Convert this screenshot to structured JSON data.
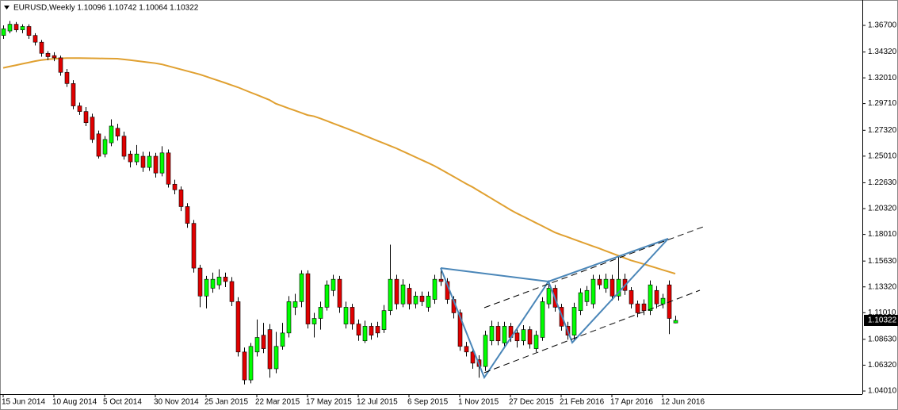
{
  "chart_data": {
    "type": "candlestick",
    "title": "EURUSD,Weekly  1.10096 1.10742 1.10064 1.10322",
    "categories": [
      "15 Jun 2014",
      null,
      null,
      null,
      null,
      null,
      null,
      null,
      "10 Aug 2014",
      null,
      null,
      null,
      null,
      null,
      null,
      null,
      "5 Oct 2014",
      null,
      null,
      null,
      null,
      null,
      null,
      null,
      "30 Nov 2014",
      null,
      null,
      null,
      null,
      null,
      null,
      null,
      "25 Jan 2015",
      null,
      null,
      null,
      null,
      null,
      null,
      null,
      "22 Mar 2015",
      null,
      null,
      null,
      null,
      null,
      null,
      null,
      "17 May 2015",
      null,
      null,
      null,
      null,
      null,
      null,
      null,
      "12 Jul 2015",
      null,
      null,
      null,
      null,
      null,
      null,
      null,
      "6 Sep 2015",
      null,
      null,
      null,
      null,
      null,
      null,
      null,
      "1 Nov 2015",
      null,
      null,
      null,
      null,
      null,
      null,
      null,
      "27 Dec 2015",
      null,
      null,
      null,
      null,
      null,
      null,
      null,
      "21 Feb 2016",
      null,
      null,
      null,
      null,
      null,
      null,
      null,
      "17 Apr 2016",
      null,
      null,
      null,
      null,
      null,
      null,
      null,
      "12 Jun 2016",
      null,
      null
    ],
    "open": [
      1.358,
      1.362,
      1.368,
      1.363,
      1.366,
      1.358,
      1.352,
      1.342,
      1.34,
      1.338,
      1.325,
      1.315,
      1.295,
      1.29,
      1.285,
      1.27,
      1.252,
      1.262,
      1.275,
      1.268,
      1.252,
      1.245,
      1.25,
      1.24,
      1.25,
      1.235,
      1.253,
      1.225,
      1.22,
      1.205,
      1.19,
      1.15,
      1.125,
      1.132,
      1.135,
      1.142,
      1.138,
      1.12,
      1.075,
      1.05,
      1.075,
      1.09,
      1.095,
      1.06,
      1.08,
      1.092,
      1.115,
      1.12,
      1.145,
      1.1,
      1.105,
      1.115,
      1.13,
      1.14,
      1.1,
      1.115,
      1.1,
      1.085,
      1.098,
      1.098,
      1.095,
      1.112,
      1.14,
      1.118,
      1.132,
      1.118,
      1.125,
      1.115,
      1.122,
      1.14,
      1.138,
      1.122,
      1.11,
      1.08,
      1.075,
      1.068,
      1.062,
      1.085,
      1.098,
      1.083,
      1.098,
      1.092,
      1.085,
      1.095,
      1.078,
      1.088,
      1.118,
      1.132,
      1.115,
      1.098,
      1.09,
      1.112,
      1.12,
      1.118,
      1.14,
      1.132,
      1.14,
      1.125,
      1.14,
      1.13,
      1.118,
      1.118,
      1.112,
      1.13,
      1.118,
      1.135,
      1.10096
    ],
    "high": [
      1.367,
      1.371,
      1.37,
      1.368,
      1.368,
      1.36,
      1.354,
      1.344,
      1.343,
      1.34,
      1.328,
      1.318,
      1.298,
      1.294,
      1.288,
      1.273,
      1.268,
      1.283,
      1.279,
      1.272,
      1.255,
      1.26,
      1.254,
      1.254,
      1.253,
      1.259,
      1.256,
      1.229,
      1.223,
      1.208,
      1.193,
      1.153,
      1.143,
      1.146,
      1.149,
      1.146,
      1.142,
      1.124,
      1.079,
      1.083,
      1.104,
      1.101,
      1.1,
      1.093,
      1.101,
      1.125,
      1.127,
      1.148,
      1.148,
      1.11,
      1.12,
      1.139,
      1.144,
      1.143,
      1.12,
      1.118,
      1.104,
      1.103,
      1.101,
      1.102,
      1.117,
      1.171,
      1.144,
      1.14,
      1.136,
      1.129,
      1.129,
      1.129,
      1.144,
      1.148,
      1.141,
      1.125,
      1.113,
      1.084,
      1.078,
      1.072,
      1.094,
      1.103,
      1.102,
      1.102,
      1.101,
      1.096,
      1.099,
      1.098,
      1.094,
      1.124,
      1.136,
      1.135,
      1.118,
      1.102,
      1.119,
      1.132,
      1.134,
      1.144,
      1.144,
      1.145,
      1.144,
      1.16,
      1.145,
      1.133,
      1.121,
      1.122,
      1.139,
      1.134,
      1.127,
      1.139,
      1.10742
    ],
    "low": [
      1.355,
      1.36,
      1.361,
      1.36,
      1.355,
      1.349,
      1.339,
      1.336,
      1.335,
      1.322,
      1.312,
      1.292,
      1.287,
      1.277,
      1.262,
      1.248,
      1.249,
      1.259,
      1.264,
      1.247,
      1.24,
      1.242,
      1.236,
      1.237,
      1.231,
      1.232,
      1.222,
      1.216,
      1.201,
      1.186,
      1.146,
      1.115,
      1.114,
      1.128,
      1.131,
      1.133,
      1.116,
      1.071,
      1.046,
      1.047,
      1.071,
      1.074,
      1.052,
      1.056,
      1.077,
      1.088,
      1.108,
      1.115,
      1.096,
      1.088,
      1.095,
      1.112,
      1.125,
      1.11,
      1.096,
      1.095,
      1.085,
      1.083,
      1.086,
      1.088,
      1.092,
      1.108,
      1.113,
      1.115,
      1.113,
      1.114,
      1.116,
      1.111,
      1.118,
      1.134,
      1.118,
      1.105,
      1.076,
      1.071,
      1.06,
      1.052,
      1.058,
      1.081,
      1.081,
      1.079,
      1.084,
      1.079,
      1.081,
      1.078,
      1.075,
      1.085,
      1.114,
      1.111,
      1.094,
      1.086,
      1.086,
      1.108,
      1.116,
      1.114,
      1.131,
      1.128,
      1.121,
      1.121,
      1.126,
      1.114,
      1.106,
      1.108,
      1.108,
      1.114,
      1.114,
      1.091,
      1.10064
    ],
    "close": [
      1.364,
      1.368,
      1.363,
      1.366,
      1.358,
      1.352,
      1.342,
      1.339,
      1.338,
      1.325,
      1.315,
      1.295,
      1.29,
      1.28,
      1.265,
      1.25,
      1.265,
      1.277,
      1.268,
      1.25,
      1.245,
      1.252,
      1.24,
      1.25,
      1.235,
      1.253,
      1.225,
      1.22,
      1.205,
      1.19,
      1.15,
      1.125,
      1.14,
      1.14,
      1.142,
      1.138,
      1.12,
      1.075,
      1.05,
      1.08,
      1.088,
      1.078,
      1.06,
      1.08,
      1.092,
      1.12,
      1.12,
      1.145,
      1.1,
      1.105,
      1.115,
      1.135,
      1.14,
      1.115,
      1.115,
      1.1,
      1.09,
      1.098,
      1.09,
      1.092,
      1.112,
      1.14,
      1.118,
      1.135,
      1.118,
      1.125,
      1.12,
      1.125,
      1.14,
      1.138,
      1.122,
      1.11,
      1.08,
      1.075,
      1.065,
      1.062,
      1.09,
      1.098,
      1.085,
      1.098,
      1.088,
      1.085,
      1.095,
      1.082,
      1.09,
      1.12,
      1.132,
      1.115,
      1.098,
      1.09,
      1.115,
      1.128,
      1.13,
      1.14,
      1.135,
      1.14,
      1.125,
      1.14,
      1.13,
      1.118,
      1.11,
      1.112,
      1.135,
      1.118,
      1.123,
      1.105,
      1.10322
    ],
    "up_color": "#00ff00",
    "down_color": "#e00000",
    "ma_color": "#e0a030",
    "ma_values": [
      1.329,
      1.3302,
      1.3314,
      1.3326,
      1.3338,
      1.335,
      1.336,
      1.3366,
      1.3371,
      1.3375,
      1.3378,
      1.3378,
      1.3378,
      1.3377,
      1.3376,
      1.3375,
      1.3374,
      1.3373,
      1.3372,
      1.3366,
      1.336,
      1.3353,
      1.3346,
      1.3339,
      1.3332,
      1.3322,
      1.3307,
      1.3292,
      1.3277,
      1.3262,
      1.3247,
      1.3232,
      1.3213,
      1.3194,
      1.3175,
      1.3156,
      1.3136,
      1.3117,
      1.3094,
      1.3071,
      1.3049,
      1.3026,
      1.3003,
      1.297,
      1.295,
      1.2929,
      1.2909,
      1.2889,
      1.2868,
      1.2858,
      1.2838,
      1.2817,
      1.2795,
      1.2774,
      1.2752,
      1.273,
      1.2708,
      1.2685,
      1.2662,
      1.2639,
      1.2617,
      1.2594,
      1.2571,
      1.2545,
      1.2519,
      1.2493,
      1.2467,
      1.2441,
      1.2414,
      1.2383,
      1.2351,
      1.2319,
      1.2287,
      1.2255,
      1.2225,
      1.2191,
      1.2157,
      1.2123,
      1.2089,
      1.2055,
      1.2021,
      1.199,
      1.1962,
      1.1934,
      1.1905,
      1.1877,
      1.1848,
      1.1819,
      1.1798,
      1.1778,
      1.1757,
      1.1737,
      1.1716,
      1.1696,
      1.1676,
      1.1654,
      1.1633,
      1.1612,
      1.159,
      1.1569,
      1.1553,
      1.1536,
      1.1519,
      1.1502,
      1.1484,
      1.1467,
      1.145
    ],
    "ylim": [
      1.0373,
      1.3897
    ],
    "yticks": [
      {
        "value": 1.367,
        "label": "1.36700"
      },
      {
        "value": 1.3432,
        "label": "1.34320"
      },
      {
        "value": 1.3201,
        "label": "1.32010"
      },
      {
        "value": 1.2971,
        "label": "1.29710"
      },
      {
        "value": 1.2732,
        "label": "1.27320"
      },
      {
        "value": 1.2501,
        "label": "1.25010"
      },
      {
        "value": 1.2263,
        "label": "1.22630"
      },
      {
        "value": 1.2032,
        "label": "1.20320"
      },
      {
        "value": 1.1801,
        "label": "1.18010"
      },
      {
        "value": 1.1563,
        "label": "1.15630"
      },
      {
        "value": 1.1332,
        "label": "1.13320"
      },
      {
        "value": 1.1101,
        "label": "1.11010"
      },
      {
        "value": 1.0863,
        "label": "1.08630"
      },
      {
        "value": 1.0632,
        "label": "1.06320"
      },
      {
        "value": 1.0401,
        "label": "1.04010"
      }
    ]
  }
}
